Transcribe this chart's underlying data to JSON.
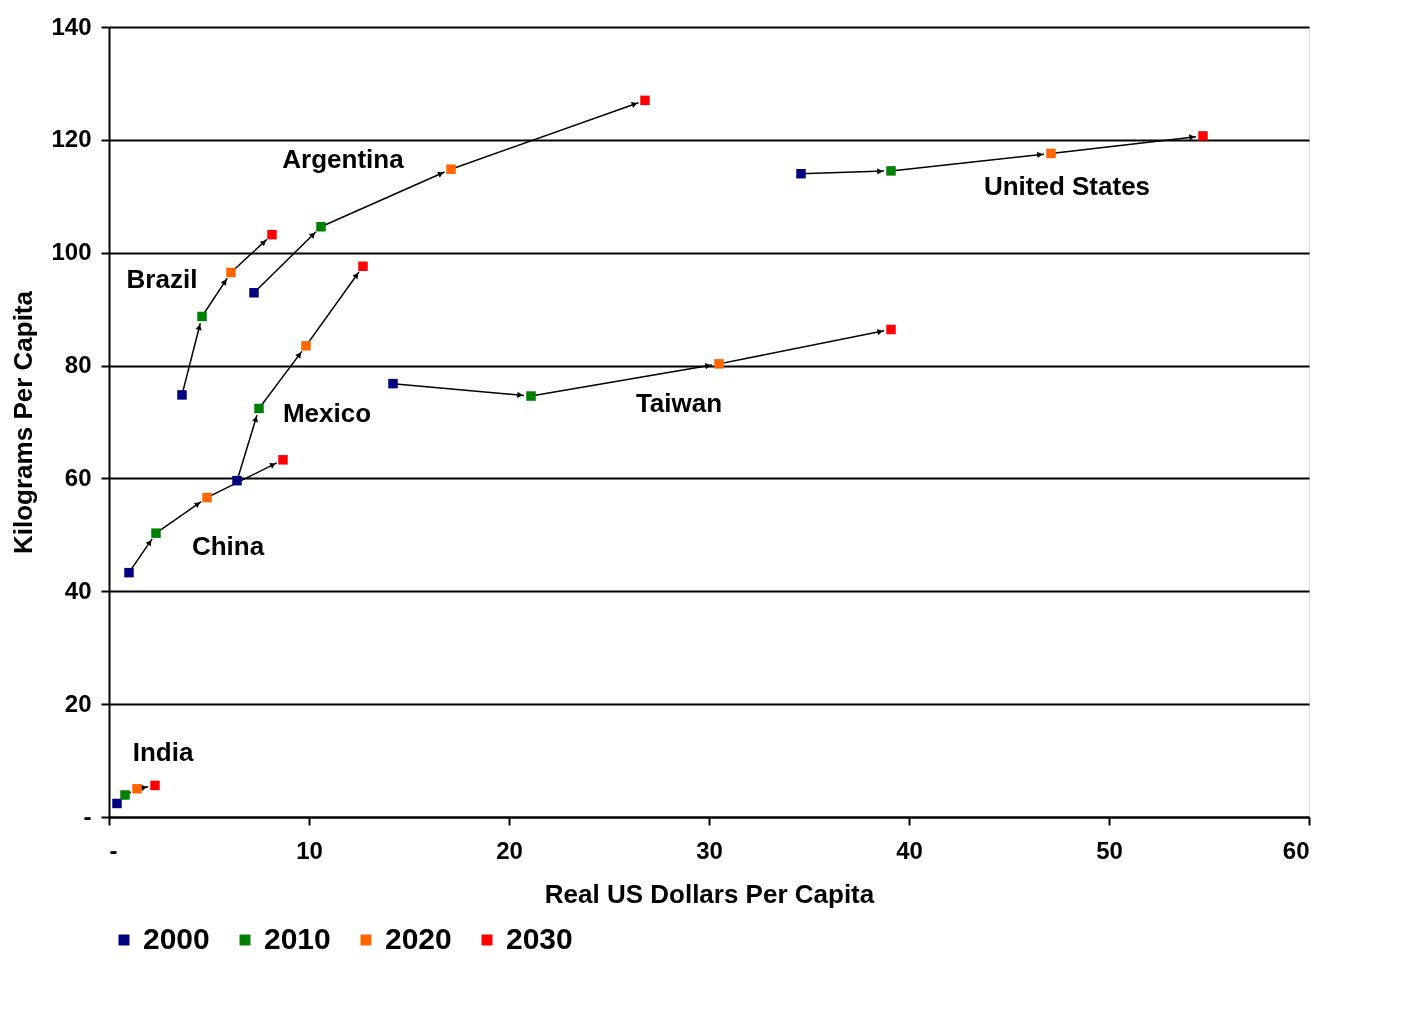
{
  "chart_data": {
    "type": "scatter",
    "xlabel": "Real US Dollars Per Capita",
    "ylabel": "Kilograms Per Capita",
    "xlim": [
      0,
      60
    ],
    "ylim": [
      0,
      140
    ],
    "xticks": [
      {
        "value": 0,
        "label": "-"
      },
      10,
      20,
      30,
      40,
      50,
      60
    ],
    "yticks": [
      {
        "value": 0,
        "label": "-"
      },
      20,
      40,
      60,
      80,
      100,
      120,
      140
    ],
    "grid": "y",
    "legend": "bottom",
    "marker": "square",
    "series": [
      {
        "name": "2000",
        "color": "#000080",
        "x": [
          0.4,
          1.0,
          6.4,
          3.65,
          7.25,
          14.2,
          34.6
        ],
        "values": [
          2.4,
          43.3,
          59.6,
          74.8,
          92.9,
          76.8,
          114.0
        ]
      },
      {
        "name": "2010",
        "color": "#008000",
        "x": [
          0.8,
          2.35,
          7.5,
          4.65,
          10.6,
          21.1,
          39.1
        ],
        "values": [
          3.9,
          50.3,
          72.4,
          88.7,
          104.6,
          74.6,
          114.5
        ]
      },
      {
        "name": "2020",
        "color": "#ff6600",
        "x": [
          1.4,
          4.9,
          9.85,
          6.1,
          17.1,
          30.5,
          47.1
        ],
        "values": [
          5.0,
          56.6,
          83.5,
          96.5,
          114.8,
          80.3,
          117.6
        ]
      },
      {
        "name": "2030",
        "color": "#ff0000",
        "x": [
          2.3,
          8.7,
          12.7,
          8.15,
          26.8,
          39.1,
          54.7
        ],
        "values": [
          5.6,
          63.3,
          97.6,
          103.2,
          127.0,
          86.4,
          120.7
        ]
      }
    ],
    "annotations": [
      {
        "text": "India",
        "x": 1.4,
        "y": 5.0
      },
      {
        "text": "China",
        "x": 2.35,
        "y": 50.3
      },
      {
        "text": "Mexico",
        "x": 7.5,
        "y": 72.4
      },
      {
        "text": "Brazil",
        "x": 4.65,
        "y": 88.7
      },
      {
        "text": "Argentina",
        "x": 10.6,
        "y": 104.6
      },
      {
        "text": "Taiwan",
        "x": 30.5,
        "y": 80.3
      },
      {
        "text": "United States",
        "x": 47.1,
        "y": 117.6
      }
    ]
  }
}
